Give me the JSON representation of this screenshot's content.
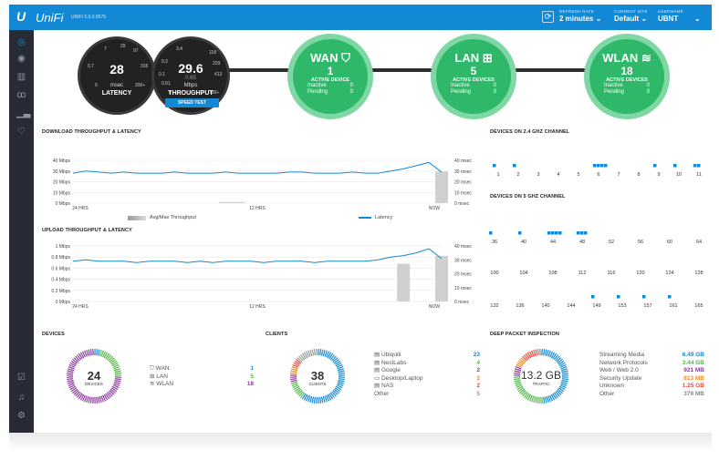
{
  "topbar": {
    "logo_mark": "U",
    "logo_text": "UniFi",
    "version": "UNIFI 5.0.0.8675",
    "refresh_label": "REFRESH RATE",
    "refresh_value": "2 minutes",
    "site_label": "CURRENT SITE",
    "site_value": "Default",
    "user_label": "USERNAME",
    "user_value": "UBNT",
    "chevron": "⌄"
  },
  "sidebar": {
    "items": [
      "dashboard-icon",
      "map-icon",
      "map-pin-icon",
      "clients-icon",
      "stats-icon",
      "insights-icon"
    ],
    "bottom": [
      "events-icon",
      "alerts-icon",
      "settings-icon"
    ]
  },
  "gauges": {
    "latency": {
      "value": "28",
      "unit": "msec",
      "caption": "LATENCY",
      "ticks": [
        "7",
        "29",
        "97",
        "0.7",
        "316",
        "0",
        "200+"
      ]
    },
    "throughput": {
      "value": "29.6",
      "unit": "Mbps",
      "caption": "THROUGHPUT",
      "secondary": "0.65",
      "ticks": [
        "3.4",
        "118",
        "0.2",
        "0.1",
        "413",
        "0.01",
        "229",
        "0",
        "700+"
      ]
    },
    "speed_test": "SPEED TEST"
  },
  "networks": [
    {
      "title": "WAN",
      "icon": "shield-icon",
      "glyph": "⛉",
      "count": "1",
      "sub": "ACTIVE DEVICE",
      "inactive_label": "Inactive",
      "inactive": "0",
      "pending_label": "Pending",
      "pending": "0"
    },
    {
      "title": "LAN",
      "icon": "network-icon",
      "glyph": "⊞",
      "count": "5",
      "sub": "ACTIVE DEVICES",
      "inactive_label": "Inactive",
      "inactive": "0",
      "pending_label": "Pending",
      "pending": "0"
    },
    {
      "title": "WLAN",
      "icon": "wifi-icon",
      "glyph": "≋",
      "count": "18",
      "sub": "ACTIVE DEVICES",
      "inactive_label": "Inactive",
      "inactive": "0",
      "pending_label": "Pending",
      "pending": "0"
    }
  ],
  "download": {
    "title": "DOWNLOAD THROUGHPUT & LATENCY",
    "left_ticks": [
      "40 Mbps",
      "30 Mbps",
      "20 Mbps",
      "10 Mbps",
      "0 Mbps"
    ],
    "right_ticks": [
      "40 msec",
      "30 msec",
      "20 msec",
      "10 msec",
      "0 msec"
    ],
    "x_labels": [
      "24 HRS",
      "12 HRS",
      "NOW"
    ],
    "legend_bar": "Avg/Max Throughput",
    "legend_line": "Latency"
  },
  "upload": {
    "title": "UPLOAD THROUGHPUT & LATENCY",
    "left_ticks": [
      "1 Mbps",
      "0.8 Mbps",
      "0.6 Mbps",
      "0.4 Mbps",
      "0.2 Mbps",
      "0 Mbps"
    ],
    "right_ticks": [
      "40 msec",
      "30 msec",
      "20 msec",
      "10 msec",
      "0 msec"
    ],
    "x_labels": [
      "24 HRS",
      "12 HRS",
      "NOW"
    ]
  },
  "chart_data": [
    {
      "type": "line",
      "title": "DOWNLOAD THROUGHPUT & LATENCY",
      "y_left": "Mbps",
      "y_right": "msec",
      "ylim": [
        0,
        40
      ],
      "series": [
        {
          "name": "Latency",
          "values": [
            28,
            30,
            29,
            28,
            29,
            28,
            28,
            28,
            29,
            28,
            28,
            28,
            29,
            28,
            28,
            28,
            28,
            29,
            29,
            28,
            28,
            28,
            29,
            28,
            28,
            30,
            32,
            35,
            38,
            29
          ]
        },
        {
          "name": "Avg/Max Throughput",
          "values": [
            0,
            0,
            0,
            0,
            0,
            0,
            0,
            0,
            0,
            0,
            0,
            0,
            1,
            1,
            0,
            0,
            0,
            0,
            0,
            0,
            0,
            0,
            0,
            0,
            0,
            0,
            0,
            0,
            0,
            29.6
          ]
        }
      ]
    },
    {
      "type": "line",
      "title": "UPLOAD THROUGHPUT & LATENCY",
      "y_left": "Mbps",
      "y_right": "msec",
      "ylim": [
        0,
        1
      ],
      "series": [
        {
          "name": "Latency",
          "values": [
            29,
            30,
            29,
            29,
            29,
            28,
            29,
            29,
            29,
            28,
            29,
            28,
            29,
            29,
            29,
            28,
            29,
            29,
            29,
            28,
            29,
            29,
            29,
            29,
            30,
            32,
            33,
            35,
            38,
            31
          ]
        },
        {
          "name": "Avg/Max Throughput",
          "values": [
            0,
            0,
            0,
            0,
            0,
            0,
            0,
            0,
            0,
            0,
            0,
            0,
            0,
            0,
            0,
            0,
            0,
            0,
            0,
            0,
            0,
            0,
            0,
            0,
            0,
            0,
            0.68,
            0,
            0,
            0.82
          ]
        }
      ]
    }
  ],
  "ch24": {
    "title": "DEVICES ON 2.4 GHZ CHANNEL",
    "labels": [
      "1",
      "2",
      "3",
      "4",
      "5",
      "6",
      "7",
      "8",
      "9",
      "10",
      "11"
    ],
    "counts": [
      1,
      1,
      0,
      0,
      0,
      4,
      0,
      0,
      1,
      1,
      2
    ]
  },
  "ch5": {
    "title": "DEVICES ON 5 GHZ CHANNEL",
    "rows": [
      {
        "labels": [
          "36",
          "40",
          "44",
          "48",
          "52",
          "56",
          "60",
          "64"
        ],
        "counts": [
          1,
          1,
          4,
          3,
          0,
          0,
          0,
          0
        ]
      },
      {
        "labels": [
          "100",
          "104",
          "108",
          "112",
          "116",
          "120",
          "124",
          "128"
        ],
        "counts": [
          0,
          0,
          0,
          0,
          0,
          0,
          0,
          0
        ]
      },
      {
        "labels": [
          "132",
          "136",
          "140",
          "144",
          "149",
          "153",
          "157",
          "161",
          "165"
        ],
        "counts": [
          0,
          0,
          0,
          0,
          1,
          1,
          1,
          1,
          0
        ]
      }
    ]
  },
  "devices": {
    "title": "DEVICES",
    "total": "24",
    "total_label": "DEVICES",
    "rows": [
      {
        "label": "WAN",
        "value": "1",
        "color": "#1389d6"
      },
      {
        "label": "LAN",
        "value": "5",
        "color": "#53b847"
      },
      {
        "label": "WLAN",
        "value": "18",
        "color": "#8b3c9e"
      }
    ]
  },
  "clients": {
    "title": "CLIENTS",
    "total": "38",
    "total_label": "CLIENTS",
    "rows": [
      {
        "label": "Ubiquiti",
        "value": "23",
        "color": "#1389d6"
      },
      {
        "label": "NestLabs",
        "value": "4",
        "color": "#53b847"
      },
      {
        "label": "Google",
        "value": "2",
        "color": "#8b3c9e"
      },
      {
        "label": "Desktop/Laptop",
        "value": "2",
        "color": "#f28c1e"
      },
      {
        "label": "NAS",
        "value": "2",
        "color": "#e84b3c"
      },
      {
        "label": "Other",
        "value": "5",
        "color": "#999999"
      }
    ]
  },
  "dpi": {
    "title": "DEEP PACKET INSPECTION",
    "total": "13.2 GB",
    "total_label": "TRAFFIC",
    "rows": [
      {
        "label": "Streaming Media",
        "value": "6.49 GB",
        "color": "#1389d6"
      },
      {
        "label": "Network Protocols",
        "value": "3.44 GB",
        "color": "#53b847"
      },
      {
        "label": "Web / Web 2.0",
        "value": "921 MB",
        "color": "#8b3c9e"
      },
      {
        "label": "Security Update",
        "value": "813 MB",
        "color": "#f28c1e"
      },
      {
        "label": "Unknown",
        "value": "1.25 GB",
        "color": "#e84b3c"
      },
      {
        "label": "Other",
        "value": "379 MB",
        "color": "#888888"
      }
    ]
  }
}
